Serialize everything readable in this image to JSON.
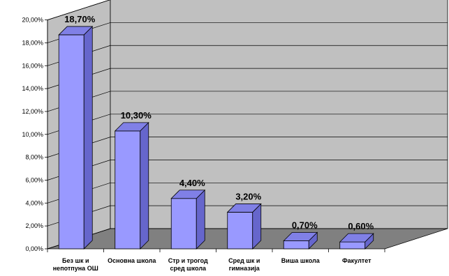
{
  "chart_data": {
    "type": "bar",
    "style": "3d-column",
    "categories": [
      [
        "Без шк и",
        "непотпуна ОШ"
      ],
      [
        "Основна школа"
      ],
      [
        "Стр и трогод",
        "сред школа"
      ],
      [
        "Сред шк и",
        "гимназија"
      ],
      [
        "Виша школа"
      ],
      [
        "Факултет"
      ]
    ],
    "values": [
      18.7,
      10.3,
      4.4,
      3.2,
      0.7,
      0.6
    ],
    "data_labels": [
      "18,70%",
      "10,30%",
      "4,40%",
      "3,20%",
      "0,70%",
      "0,60%"
    ],
    "y_ticks": [
      "0,00%",
      "2,00%",
      "4,00%",
      "6,00%",
      "8,00%",
      "10,00%",
      "12,00%",
      "14,00%",
      "16,00%",
      "18,00%",
      "20,00%"
    ],
    "ylim": [
      0,
      20
    ],
    "grid": true,
    "legend": "none",
    "title": "",
    "xlabel": "",
    "ylabel": "",
    "colors": {
      "bar_front": "#9999ff",
      "bar_side": "#6666cc",
      "bar_top": "#8080e6",
      "wall": "#c0c0c0",
      "floor": "#808080",
      "grid": "#000000"
    }
  }
}
